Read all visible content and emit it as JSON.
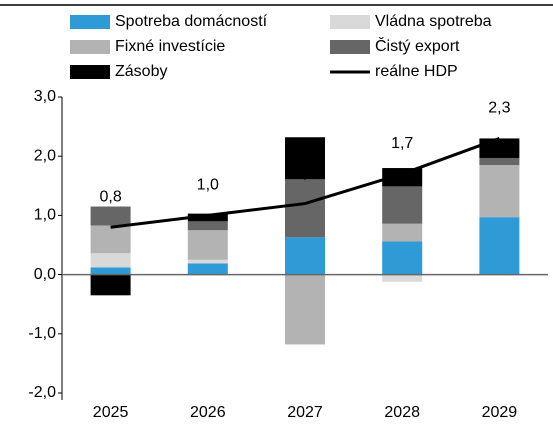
{
  "chart_data": {
    "type": "bar",
    "categories": [
      "2025",
      "2026",
      "2027",
      "2028",
      "2029"
    ],
    "series": [
      {
        "name": "Spotreba domácností",
        "color": "#2e9bd6",
        "values": [
          0.12,
          0.19,
          0.63,
          0.56,
          0.97
        ]
      },
      {
        "name": "Vládna spotreba",
        "color": "#d9d9d9",
        "values": [
          0.24,
          0.06,
          0,
          -0.12,
          0
        ]
      },
      {
        "name": "Fixné investície",
        "color": "#b3b3b3",
        "values": [
          0.47,
          0.5,
          -1.18,
          0.3,
          0.88
        ]
      },
      {
        "name": "Čistý export",
        "color": "#666666",
        "values": [
          0.32,
          0.15,
          0.98,
          0.63,
          0.12
        ]
      },
      {
        "name": "Zásoby",
        "color": "#000000",
        "values": [
          -0.35,
          0.13,
          0.71,
          0.31,
          0.33
        ]
      },
      {
        "name": "reálne HDP",
        "color": "#000000",
        "type": "line",
        "values": [
          0.8,
          1.0,
          1.2,
          1.7,
          2.3
        ],
        "value_labels": [
          "0,8",
          "1,0",
          "1,2",
          "1,7",
          "2,3"
        ]
      }
    ],
    "ylim": [
      -2,
      3
    ],
    "yticks": [
      {
        "value": -2,
        "label": "-2,0"
      },
      {
        "value": -1,
        "label": "-1,0"
      },
      {
        "value": 0,
        "label": "0,0"
      },
      {
        "value": 1,
        "label": "1,0"
      },
      {
        "value": 2,
        "label": "2,0"
      },
      {
        "value": 3,
        "label": "3,0"
      }
    ]
  }
}
